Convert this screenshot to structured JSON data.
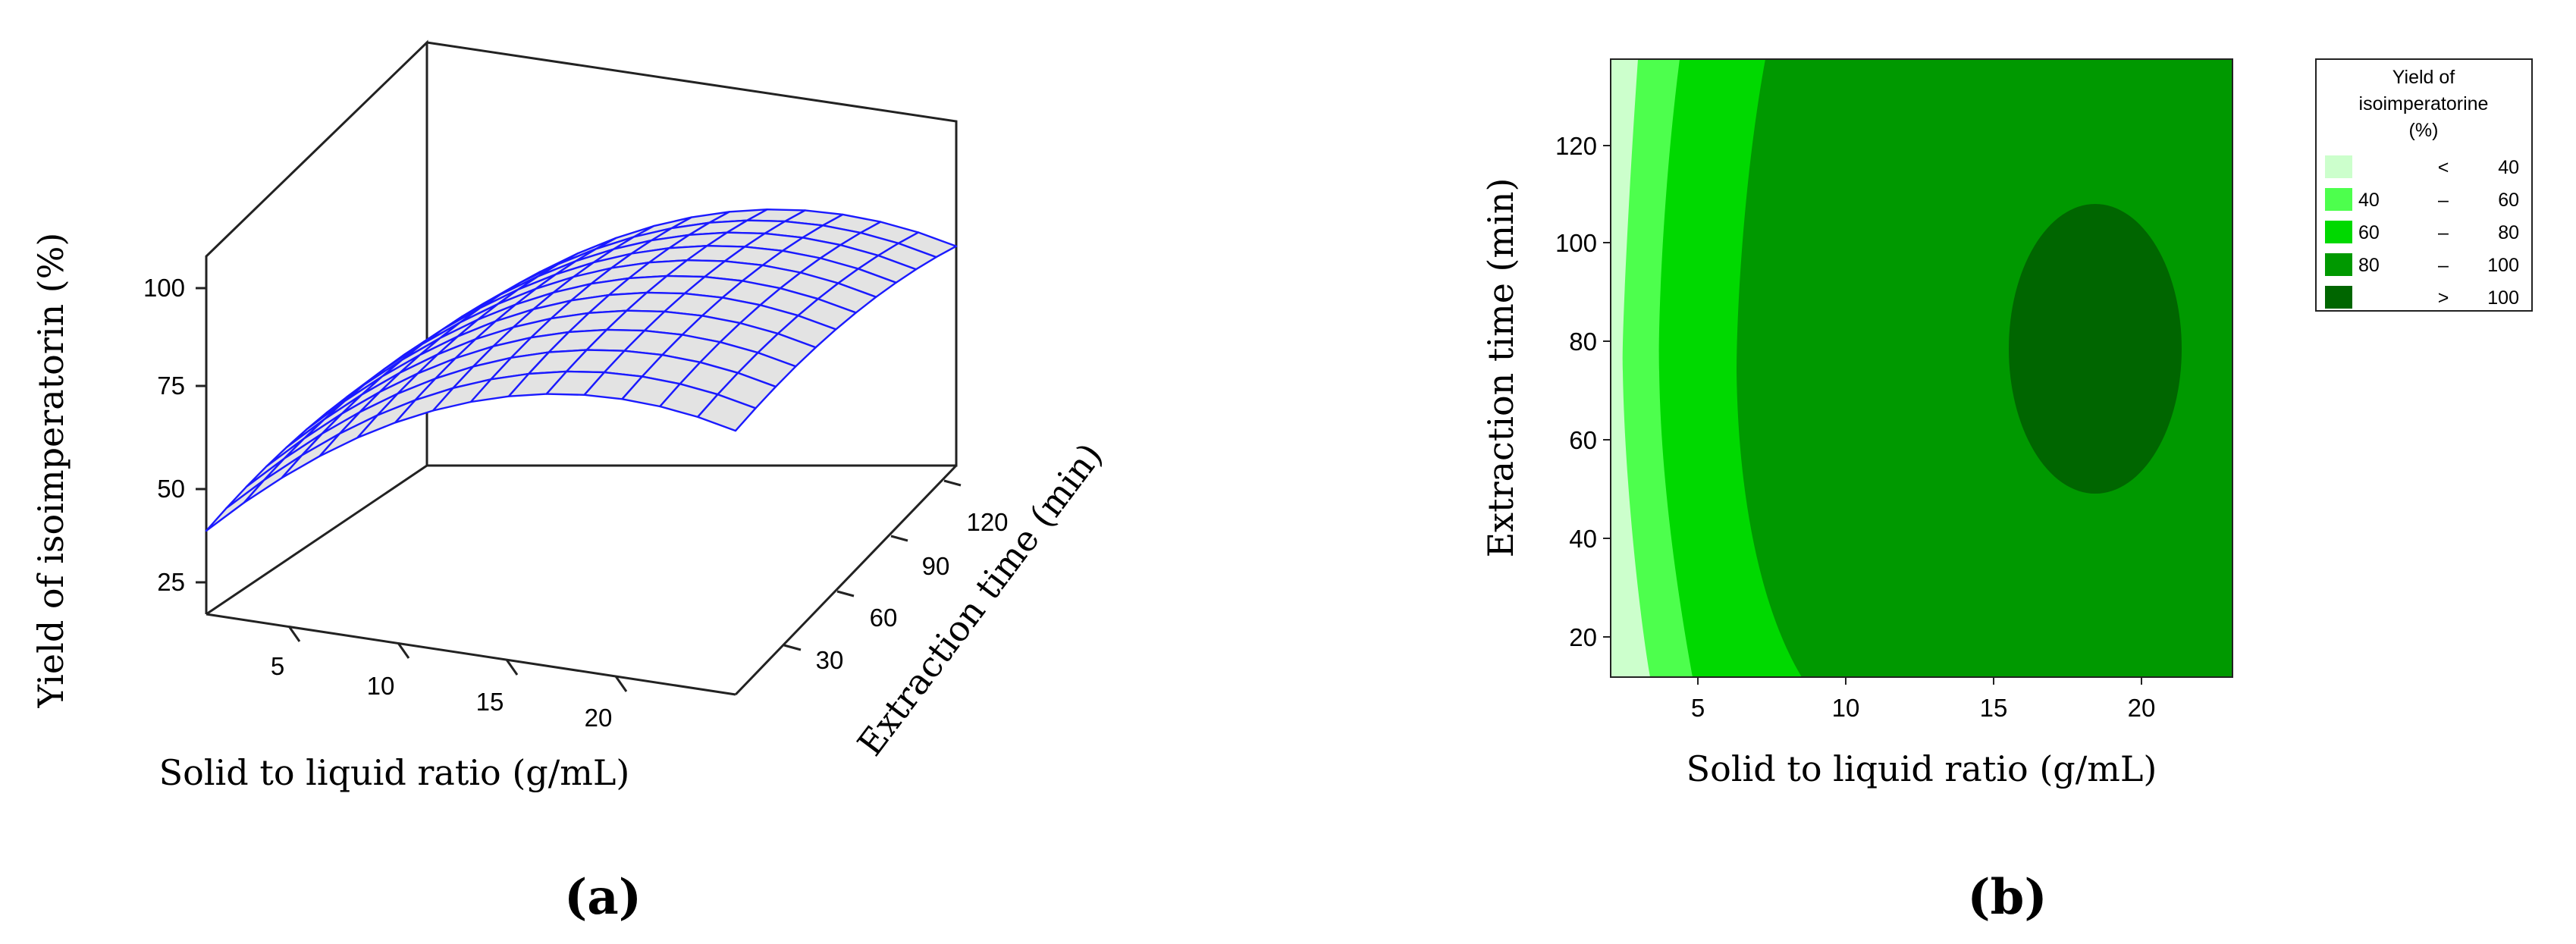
{
  "panel_a": {
    "caption": "(a)",
    "chart_data": {
      "type": "surface3d",
      "xlabel": "Solid to liquid ratio (g/mL)",
      "ylabel": "Extraction time (min)",
      "zlabel": "Yield of isoimperatorin (%)",
      "x_ticks": [
        "5",
        "10",
        "15",
        "20"
      ],
      "y_ticks": [
        "30",
        "60",
        "90",
        "120"
      ],
      "z_ticks": [
        "25",
        "50",
        "75",
        "100"
      ],
      "xlim": [
        2,
        23
      ],
      "ylim": [
        10,
        138
      ],
      "zlim": [
        20,
        120
      ],
      "x_grid": [
        2,
        3.5,
        5,
        6.5,
        8,
        9.5,
        11,
        12.5,
        14,
        15.5,
        17,
        18.5,
        20,
        21.5,
        23
      ],
      "y_grid": [
        10,
        21.6,
        33.3,
        44.9,
        56.5,
        68.2,
        79.8,
        91.5,
        103.1,
        114.7,
        126.4,
        138
      ],
      "surface_color": "#1a1aff",
      "fill_color": "#e3e3e3"
    }
  },
  "panel_b": {
    "caption": "(b)",
    "chart_data": {
      "type": "contour",
      "xlabel": "Solid to liquid ratio (g/mL)",
      "ylabel": "Extraction time (min)",
      "x_ticks": [
        "5",
        "10",
        "15",
        "20"
      ],
      "y_ticks": [
        "20",
        "40",
        "60",
        "80",
        "100",
        "120"
      ],
      "xlim": [
        2,
        23
      ],
      "ylim": [
        10,
        138
      ],
      "legend": {
        "title": [
          "Yield of",
          "isoimperatorine",
          "(%)"
        ],
        "entries": [
          {
            "low": "",
            "sep": "<",
            "high": "40",
            "color": "#ccffcc"
          },
          {
            "low": "40",
            "sep": "–",
            "high": "60",
            "color": "#4dff4d"
          },
          {
            "low": "60",
            "sep": "–",
            "high": "80",
            "color": "#00d900"
          },
          {
            "low": "80",
            "sep": "–",
            "high": "100",
            "color": "#009900"
          },
          {
            "low": "",
            "sep": ">",
            "high": "100",
            "color": "#006600"
          }
        ]
      }
    }
  }
}
